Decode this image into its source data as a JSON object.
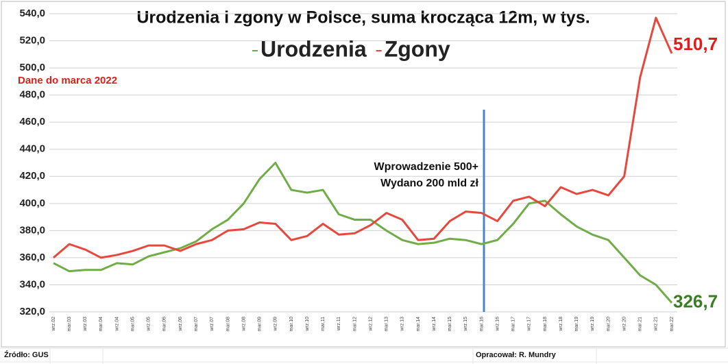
{
  "chart_data": {
    "type": "line",
    "title": "Urodzenia i zgony w Polsce, suma krocząca 12m, w tys.",
    "annotations": [
      "Dane do marca 2022",
      "Wprowadzenie 500+",
      "Wydano 200 mld zł"
    ],
    "source": "Źródło: GUS",
    "author": "Opracował: R. Mundry",
    "categories": [
      "wrz.02",
      "mar.03",
      "wrz.03",
      "mar.04",
      "wrz.04",
      "mar.05",
      "wrz.05",
      "mar.06",
      "wrz.06",
      "mar.07",
      "wrz.07",
      "mar.08",
      "wrz.08",
      "mar.09",
      "wrz.09",
      "mar.10",
      "wrz.10",
      "mar.11",
      "wrz.11",
      "mar.12",
      "wrz.12",
      "mar.13",
      "wrz.13",
      "mar.14",
      "wrz.14",
      "mar.15",
      "wrz.15",
      "mar.16",
      "wrz.16",
      "mar.17",
      "wrz.17",
      "mar.18",
      "wrz.18",
      "mar.19",
      "wrz.19",
      "mar.20",
      "wrz.20",
      "mar.21",
      "wrz.21",
      "mar.22"
    ],
    "series": [
      {
        "name": "Urodzenia",
        "color": "#70ad47",
        "label_color": "#3a7d22",
        "values": [
          356,
          350,
          351,
          351,
          356,
          355,
          361,
          364,
          367,
          372,
          381,
          388,
          400,
          418,
          430,
          410,
          408,
          410,
          392,
          388,
          388,
          380,
          373,
          370,
          371,
          374,
          373,
          370,
          373,
          385,
          400,
          402,
          392,
          383,
          377,
          373,
          360,
          347,
          340,
          326.7
        ],
        "value_labels": [
          null,
          null,
          null,
          null,
          null,
          null,
          null,
          null,
          null,
          null,
          null,
          null,
          null,
          null,
          null,
          null,
          null,
          null,
          null,
          null,
          null,
          null,
          null,
          null,
          null,
          null,
          null,
          null,
          null,
          null,
          null,
          null,
          null,
          null,
          null,
          null,
          null,
          null,
          null,
          "326,7"
        ]
      },
      {
        "name": "Zgony",
        "color": "#e8473c",
        "label_color": "#e31b1b",
        "values": [
          360,
          370,
          366,
          360,
          362,
          365,
          369,
          369,
          365,
          370,
          373,
          380,
          381,
          386,
          385,
          373,
          376,
          385,
          377,
          378,
          384,
          393,
          388,
          373,
          374,
          387,
          394,
          393,
          387,
          402,
          405,
          398,
          412,
          407,
          410,
          406,
          420,
          493,
          537,
          510.7
        ],
        "value_labels": [
          null,
          null,
          null,
          null,
          null,
          null,
          null,
          null,
          null,
          null,
          null,
          null,
          null,
          null,
          null,
          null,
          null,
          null,
          null,
          null,
          null,
          null,
          null,
          null,
          null,
          null,
          null,
          null,
          null,
          null,
          null,
          null,
          null,
          null,
          null,
          null,
          null,
          null,
          null,
          "510,7"
        ]
      }
    ],
    "ylim": [
      320,
      540
    ],
    "yticks": [
      {
        "value": 320,
        "label": "320,0"
      },
      {
        "value": 340,
        "label": "340,0"
      },
      {
        "value": 360,
        "label": "360,0"
      },
      {
        "value": 380,
        "label": "380,0"
      },
      {
        "value": 400,
        "label": "400,0"
      },
      {
        "value": 420,
        "label": "420,0"
      },
      {
        "value": 440,
        "label": "440,0"
      },
      {
        "value": 460,
        "label": "460,0"
      },
      {
        "value": 480,
        "label": "480,0"
      },
      {
        "value": 500,
        "label": "500,0"
      },
      {
        "value": 520,
        "label": "520,0"
      },
      {
        "value": 540,
        "label": "540,0"
      }
    ],
    "grid": true
  }
}
